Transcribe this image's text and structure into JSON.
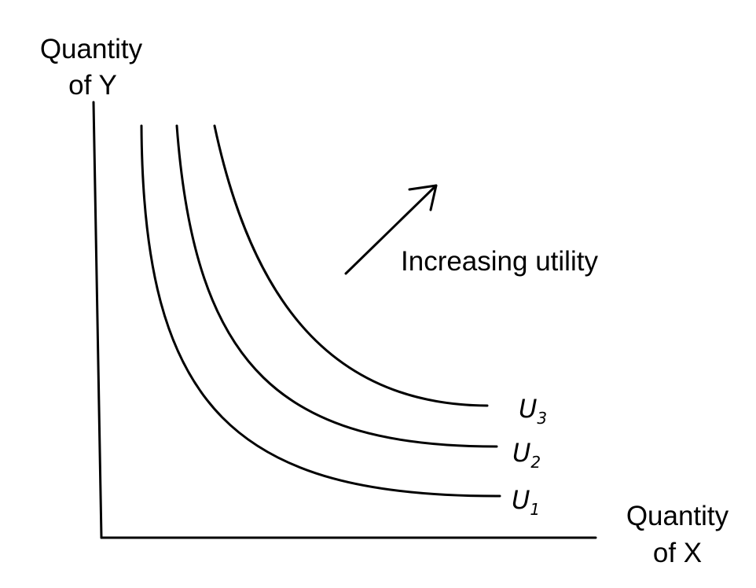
{
  "y_axis": {
    "label_line1": "Quantity",
    "label_line2": "of Y"
  },
  "x_axis": {
    "label_line1": "Quantity",
    "label_line2": "of X"
  },
  "annotation": {
    "text": "Increasing utility"
  },
  "curves": [
    {
      "letter": "U",
      "subscript": "1"
    },
    {
      "letter": "U",
      "subscript": "2"
    },
    {
      "letter": "U",
      "subscript": "3"
    }
  ],
  "colors": {
    "ink": "#000000",
    "background": "#ffffff"
  }
}
